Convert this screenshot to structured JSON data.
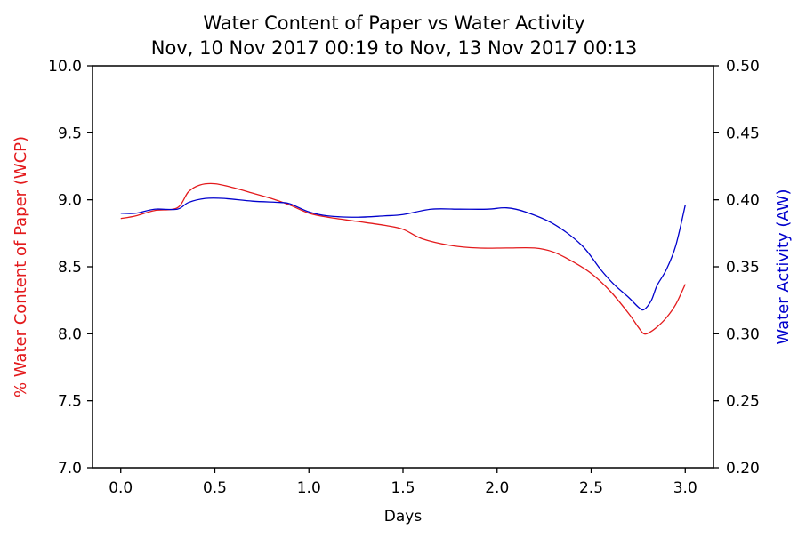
{
  "chart_data": {
    "type": "line",
    "title": "Water Content of Paper vs Water Activity",
    "subtitle": "Nov, 10 Nov 2017 00:19 to Nov, 13 Nov 2017 00:13",
    "xlabel": "Days",
    "xlim": [
      -0.15,
      3.15
    ],
    "x_ticks": [
      "0.0",
      "0.5",
      "1.0",
      "1.5",
      "2.0",
      "2.5",
      "3.0"
    ],
    "grid": false,
    "left_axis": {
      "label": "% Water Content of Paper (WCP)",
      "color": "#e31a1c",
      "ylim": [
        7.0,
        10.0
      ],
      "ticks": [
        "7.0",
        "7.5",
        "8.0",
        "8.5",
        "9.0",
        "9.5",
        "10.0"
      ]
    },
    "right_axis": {
      "label": "Water Activity (AW)",
      "color": "#0000cc",
      "ylim": [
        0.2,
        0.5
      ],
      "ticks": [
        "0.20",
        "0.25",
        "0.30",
        "0.35",
        "0.40",
        "0.45",
        "0.50"
      ]
    },
    "series": [
      {
        "axis": "left",
        "color": "#e31a1c",
        "points": [
          [
            0.0,
            8.86
          ],
          [
            0.08,
            8.88
          ],
          [
            0.18,
            8.92
          ],
          [
            0.3,
            8.94
          ],
          [
            0.36,
            9.06
          ],
          [
            0.42,
            9.11
          ],
          [
            0.5,
            9.12
          ],
          [
            0.6,
            9.09
          ],
          [
            0.7,
            9.05
          ],
          [
            0.8,
            9.01
          ],
          [
            0.9,
            8.96
          ],
          [
            1.0,
            8.9
          ],
          [
            1.1,
            8.87
          ],
          [
            1.25,
            8.84
          ],
          [
            1.4,
            8.81
          ],
          [
            1.5,
            8.78
          ],
          [
            1.6,
            8.71
          ],
          [
            1.75,
            8.66
          ],
          [
            1.9,
            8.64
          ],
          [
            2.05,
            8.64
          ],
          [
            2.2,
            8.64
          ],
          [
            2.3,
            8.61
          ],
          [
            2.4,
            8.54
          ],
          [
            2.5,
            8.45
          ],
          [
            2.6,
            8.32
          ],
          [
            2.7,
            8.15
          ],
          [
            2.75,
            8.05
          ],
          [
            2.78,
            8.0
          ],
          [
            2.81,
            8.01
          ],
          [
            2.85,
            8.05
          ],
          [
            2.9,
            8.12
          ],
          [
            2.95,
            8.22
          ],
          [
            3.0,
            8.37
          ]
        ]
      },
      {
        "axis": "right",
        "color": "#0000cc",
        "points": [
          [
            0.0,
            0.39
          ],
          [
            0.08,
            0.39
          ],
          [
            0.18,
            0.393
          ],
          [
            0.3,
            0.393
          ],
          [
            0.36,
            0.398
          ],
          [
            0.45,
            0.401
          ],
          [
            0.55,
            0.401
          ],
          [
            0.7,
            0.399
          ],
          [
            0.85,
            0.398
          ],
          [
            0.9,
            0.397
          ],
          [
            1.0,
            0.391
          ],
          [
            1.1,
            0.388
          ],
          [
            1.25,
            0.387
          ],
          [
            1.4,
            0.388
          ],
          [
            1.5,
            0.389
          ],
          [
            1.65,
            0.393
          ],
          [
            1.8,
            0.393
          ],
          [
            1.95,
            0.393
          ],
          [
            2.05,
            0.394
          ],
          [
            2.15,
            0.391
          ],
          [
            2.3,
            0.382
          ],
          [
            2.45,
            0.366
          ],
          [
            2.55,
            0.348
          ],
          [
            2.62,
            0.337
          ],
          [
            2.7,
            0.327
          ],
          [
            2.75,
            0.32
          ],
          [
            2.78,
            0.318
          ],
          [
            2.82,
            0.325
          ],
          [
            2.85,
            0.336
          ],
          [
            2.9,
            0.348
          ],
          [
            2.95,
            0.366
          ],
          [
            3.0,
            0.396
          ]
        ]
      }
    ]
  }
}
